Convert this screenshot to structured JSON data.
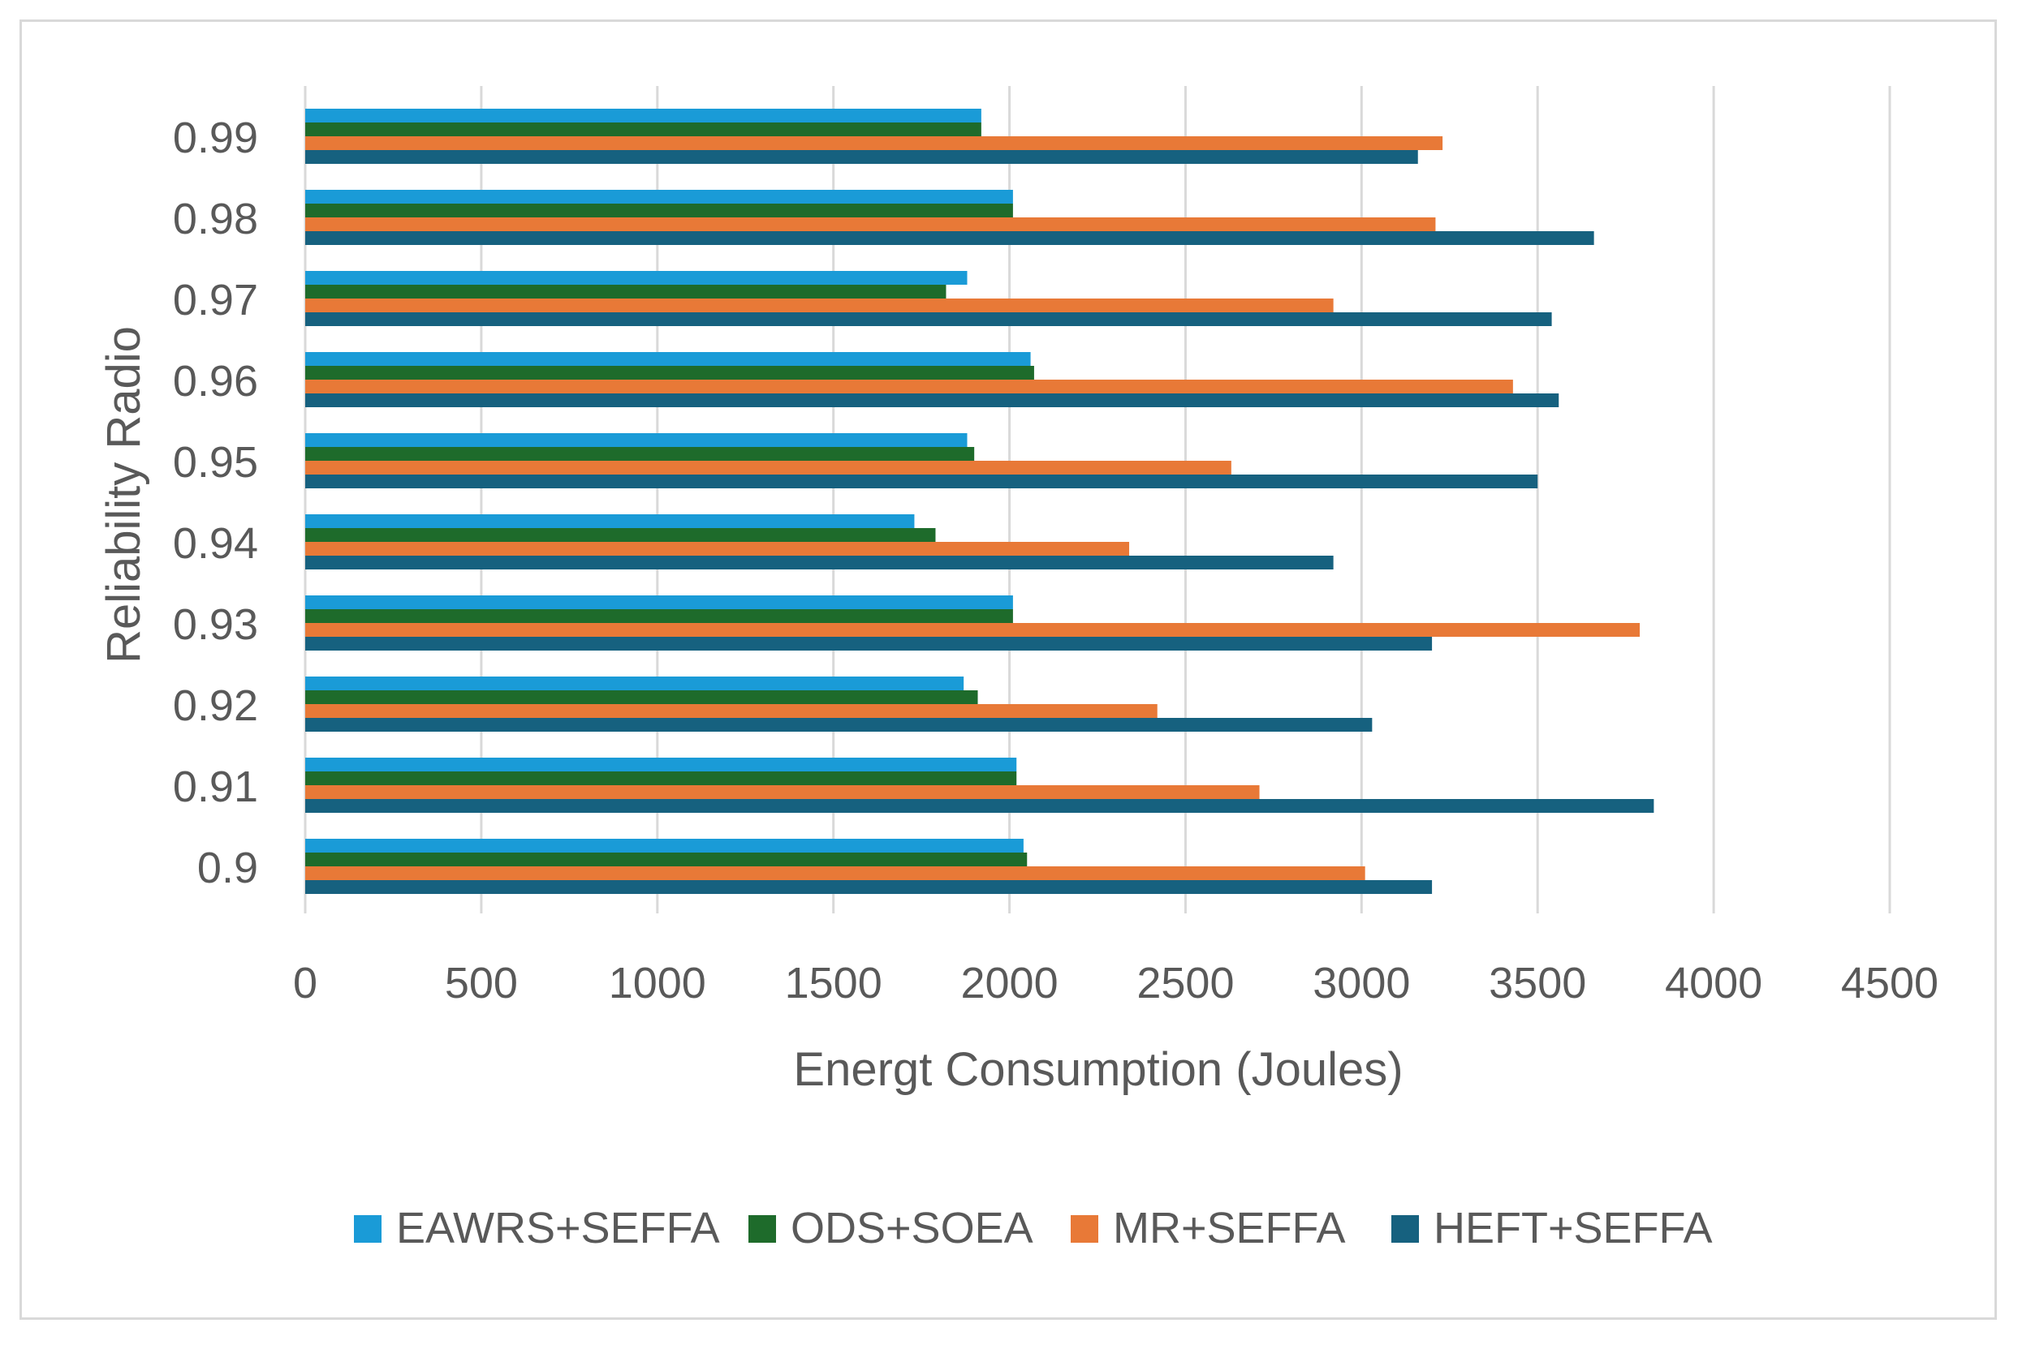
{
  "chart_data": {
    "type": "bar",
    "orientation": "horizontal",
    "title": "",
    "xlabel": "Energt Consumption (Joules)",
    "ylabel": "Reliability Radio",
    "xlim": [
      0,
      4500
    ],
    "xticks": [
      0,
      500,
      1000,
      1500,
      2000,
      2500,
      3000,
      3500,
      4000,
      4500
    ],
    "grid": "vertical",
    "legend_position": "bottom",
    "categories": [
      "0.9",
      "0.91",
      "0.92",
      "0.93",
      "0.94",
      "0.95",
      "0.96",
      "0.97",
      "0.98",
      "0.99"
    ],
    "series": [
      {
        "name": "EAWRS+SEFFA",
        "color": "#1a9bd7",
        "values": [
          2040,
          2020,
          1870,
          2010,
          1730,
          1880,
          2060,
          1880,
          2010,
          1920
        ]
      },
      {
        "name": "ODS+SOEA",
        "color": "#1e6b2b",
        "values": [
          2050,
          2020,
          1910,
          2010,
          1790,
          1900,
          2070,
          1820,
          2010,
          1920
        ]
      },
      {
        "name": "MR+SEFFA",
        "color": "#e87937",
        "values": [
          3010,
          2710,
          2420,
          3790,
          2340,
          2630,
          3430,
          2920,
          3210,
          3230
        ]
      },
      {
        "name": "HEFT+SEFFA",
        "color": "#16617f",
        "values": [
          3200,
          3830,
          3030,
          3200,
          2920,
          3500,
          3560,
          3540,
          3660,
          3160
        ]
      }
    ]
  }
}
